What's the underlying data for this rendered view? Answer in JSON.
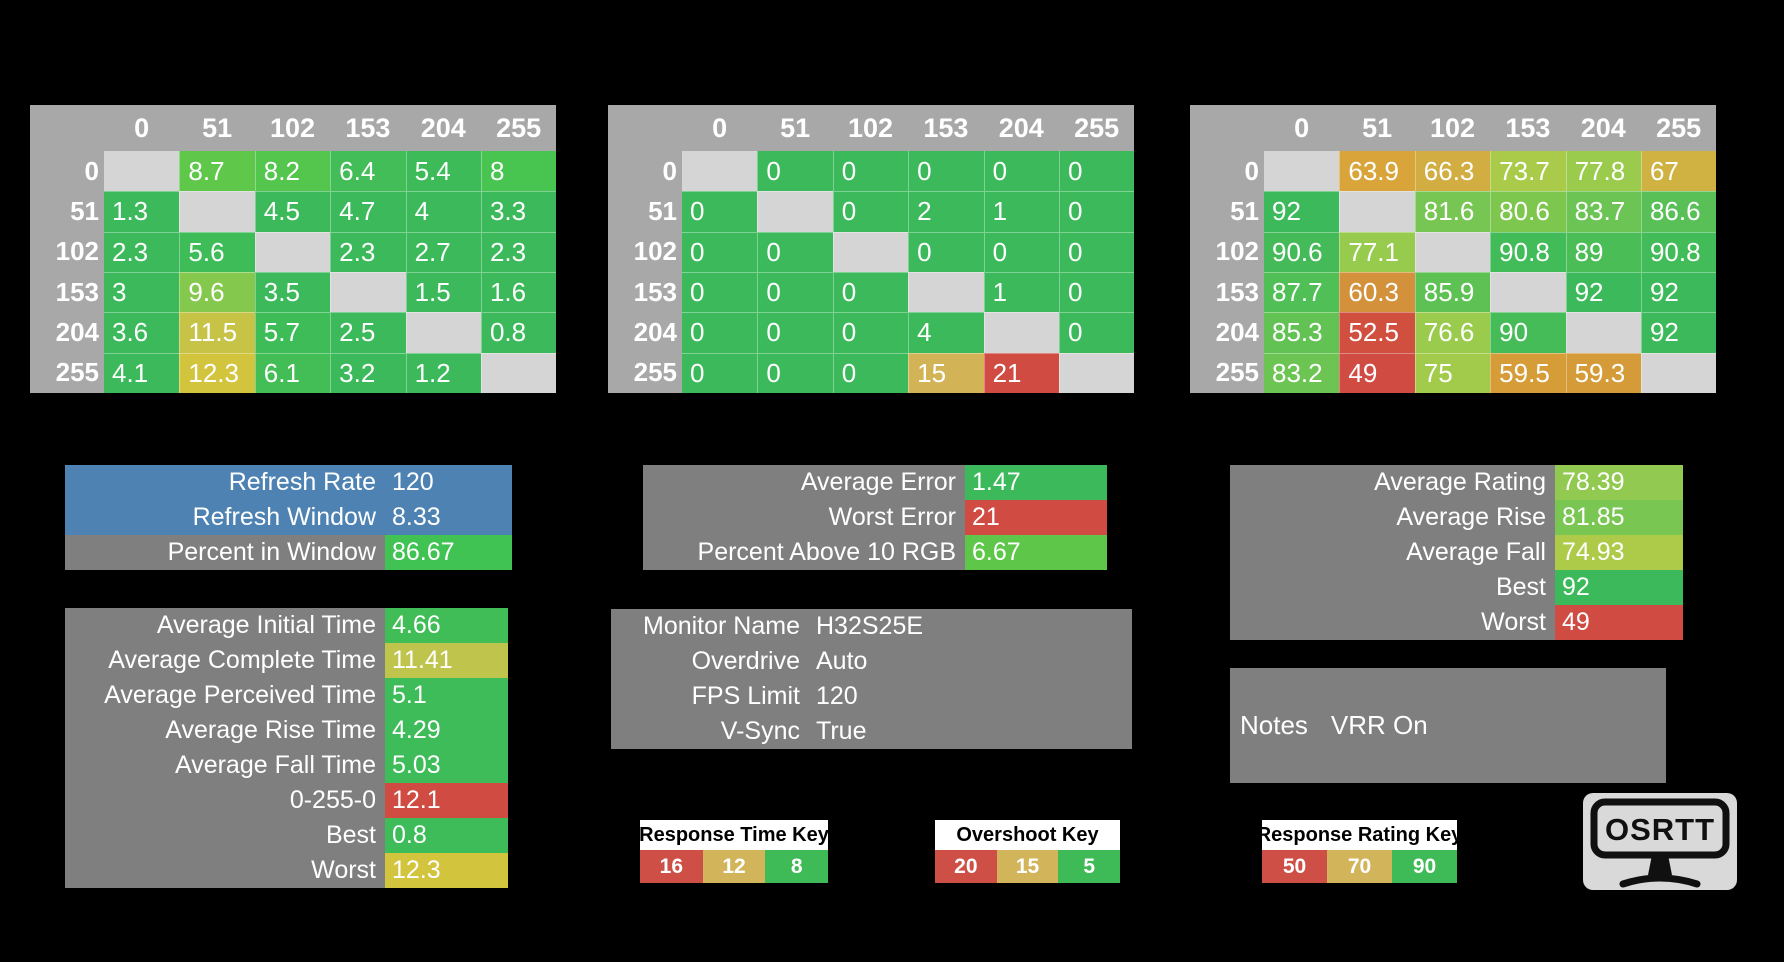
{
  "colors": {
    "background": "#000000",
    "table_header_gray": "#a8a8a8",
    "diagonal_gray": "#d5d5d5",
    "panel_gray": "#7f7f7f",
    "refresh_blue": "#4d82b2",
    "good_green": "#3cba5b",
    "mid_yellow": "#d2b45b",
    "bad_red": "#d04b42"
  },
  "matrices": [
    {
      "name": "response-time-matrix",
      "col_headers": [
        "0",
        "51",
        "102",
        "153",
        "204",
        "255"
      ],
      "rows": [
        {
          "label": "0",
          "cells": [
            null,
            {
              "v": "8.7",
              "c": "#5fc84a"
            },
            {
              "v": "8.2",
              "c": "#54c64d"
            },
            {
              "v": "6.4",
              "c": "#42bd57"
            },
            {
              "v": "5.4",
              "c": "#3dbb59"
            },
            {
              "v": "8",
              "c": "#48c550"
            }
          ]
        },
        {
          "label": "51",
          "cells": [
            {
              "v": "1.3",
              "c": "#3cba5b"
            },
            null,
            {
              "v": "4.5",
              "c": "#3cba5b"
            },
            {
              "v": "4.7",
              "c": "#3cba5b"
            },
            {
              "v": "4",
              "c": "#3cba5b"
            },
            {
              "v": "3.3",
              "c": "#3cba5b"
            }
          ]
        },
        {
          "label": "102",
          "cells": [
            {
              "v": "2.3",
              "c": "#3cba5b"
            },
            {
              "v": "5.6",
              "c": "#3ebc58"
            },
            null,
            {
              "v": "2.3",
              "c": "#3cba5b"
            },
            {
              "v": "2.7",
              "c": "#3cba5b"
            },
            {
              "v": "2.3",
              "c": "#3cba5b"
            }
          ]
        },
        {
          "label": "153",
          "cells": [
            {
              "v": "3",
              "c": "#3cba5b"
            },
            {
              "v": "9.6",
              "c": "#84c94d"
            },
            {
              "v": "3.5",
              "c": "#3cba5b"
            },
            null,
            {
              "v": "1.5",
              "c": "#3cba5b"
            },
            {
              "v": "1.6",
              "c": "#3cba5b"
            }
          ]
        },
        {
          "label": "204",
          "cells": [
            {
              "v": "3.6",
              "c": "#3cba5b"
            },
            {
              "v": "11.5",
              "c": "#c6c347"
            },
            {
              "v": "5.7",
              "c": "#3ebc58"
            },
            {
              "v": "2.5",
              "c": "#3cba5b"
            },
            null,
            {
              "v": "0.8",
              "c": "#3cba5b"
            }
          ]
        },
        {
          "label": "255",
          "cells": [
            {
              "v": "4.1",
              "c": "#3cba5b"
            },
            {
              "v": "12.3",
              "c": "#d3c43d"
            },
            {
              "v": "6.1",
              "c": "#43bd56"
            },
            {
              "v": "3.2",
              "c": "#3cba5b"
            },
            {
              "v": "1.2",
              "c": "#3cba5b"
            },
            null
          ]
        }
      ]
    },
    {
      "name": "overshoot-matrix",
      "col_headers": [
        "0",
        "51",
        "102",
        "153",
        "204",
        "255"
      ],
      "rows": [
        {
          "label": "0",
          "cells": [
            null,
            {
              "v": "0",
              "c": "#3cba5b"
            },
            {
              "v": "0",
              "c": "#3cba5b"
            },
            {
              "v": "0",
              "c": "#3cba5b"
            },
            {
              "v": "0",
              "c": "#3cba5b"
            },
            {
              "v": "0",
              "c": "#3cba5b"
            }
          ]
        },
        {
          "label": "51",
          "cells": [
            {
              "v": "0",
              "c": "#3cba5b"
            },
            null,
            {
              "v": "0",
              "c": "#3cba5b"
            },
            {
              "v": "2",
              "c": "#3cba5b"
            },
            {
              "v": "1",
              "c": "#3cba5b"
            },
            {
              "v": "0",
              "c": "#3cba5b"
            }
          ]
        },
        {
          "label": "102",
          "cells": [
            {
              "v": "0",
              "c": "#3cba5b"
            },
            {
              "v": "0",
              "c": "#3cba5b"
            },
            null,
            {
              "v": "0",
              "c": "#3cba5b"
            },
            {
              "v": "0",
              "c": "#3cba5b"
            },
            {
              "v": "0",
              "c": "#3cba5b"
            }
          ]
        },
        {
          "label": "153",
          "cells": [
            {
              "v": "0",
              "c": "#3cba5b"
            },
            {
              "v": "0",
              "c": "#3cba5b"
            },
            {
              "v": "0",
              "c": "#3cba5b"
            },
            null,
            {
              "v": "1",
              "c": "#3cba5b"
            },
            {
              "v": "0",
              "c": "#3cba5b"
            }
          ]
        },
        {
          "label": "204",
          "cells": [
            {
              "v": "0",
              "c": "#3cba5b"
            },
            {
              "v": "0",
              "c": "#3cba5b"
            },
            {
              "v": "0",
              "c": "#3cba5b"
            },
            {
              "v": "4",
              "c": "#3cba5b"
            },
            null,
            {
              "v": "0",
              "c": "#3cba5b"
            }
          ]
        },
        {
          "label": "255",
          "cells": [
            {
              "v": "0",
              "c": "#3cba5b"
            },
            {
              "v": "0",
              "c": "#3cba5b"
            },
            {
              "v": "0",
              "c": "#3cba5b"
            },
            {
              "v": "15",
              "c": "#d2b456"
            },
            {
              "v": "21",
              "c": "#d04b42"
            },
            null
          ]
        }
      ]
    },
    {
      "name": "response-rating-matrix",
      "col_headers": [
        "0",
        "51",
        "102",
        "153",
        "204",
        "255"
      ],
      "rows": [
        {
          "label": "0",
          "cells": [
            null,
            {
              "v": "63.9",
              "c": "#d9a53a"
            },
            {
              "v": "66.3",
              "c": "#d2ad41"
            },
            {
              "v": "73.7",
              "c": "#aacb49"
            },
            {
              "v": "77.8",
              "c": "#9bcb4d"
            },
            {
              "v": "67",
              "c": "#cfb242"
            }
          ]
        },
        {
          "label": "51",
          "cells": [
            {
              "v": "92",
              "c": "#3cba5b"
            },
            null,
            {
              "v": "81.6",
              "c": "#77c653"
            },
            {
              "v": "80.6",
              "c": "#7ec74f"
            },
            {
              "v": "83.7",
              "c": "#6bc454"
            },
            {
              "v": "86.6",
              "c": "#58c056"
            }
          ]
        },
        {
          "label": "102",
          "cells": [
            {
              "v": "90.6",
              "c": "#44bb58"
            },
            {
              "v": "77.1",
              "c": "#97cb4d"
            },
            null,
            {
              "v": "90.8",
              "c": "#42bb59"
            },
            {
              "v": "89",
              "c": "#4abd57"
            },
            {
              "v": "90.8",
              "c": "#42bb59"
            }
          ]
        },
        {
          "label": "153",
          "cells": [
            {
              "v": "87.7",
              "c": "#50bf56"
            },
            {
              "v": "60.3",
              "c": "#d3913c"
            },
            {
              "v": "85.9",
              "c": "#5dc153"
            },
            null,
            {
              "v": "92",
              "c": "#3cba5b"
            },
            {
              "v": "92",
              "c": "#3cba5b"
            }
          ]
        },
        {
          "label": "204",
          "cells": [
            {
              "v": "85.3",
              "c": "#63c254"
            },
            {
              "v": "52.5",
              "c": "#d14f3e"
            },
            {
              "v": "76.6",
              "c": "#9acb4d"
            },
            {
              "v": "90",
              "c": "#45bc58"
            },
            null,
            {
              "v": "92",
              "c": "#3cba5b"
            }
          ]
        },
        {
          "label": "255",
          "cells": [
            {
              "v": "83.2",
              "c": "#6cc453"
            },
            {
              "v": "49",
              "c": "#d04b42"
            },
            {
              "v": "75",
              "c": "#a3cb4b"
            },
            {
              "v": "59.5",
              "c": "#d59c38"
            },
            {
              "v": "59.3",
              "c": "#d59b38"
            },
            null
          ]
        }
      ]
    }
  ],
  "panels": {
    "refresh": {
      "rows": [
        {
          "label": "Refresh Rate",
          "value": "120",
          "row_bg": "#4d82b2"
        },
        {
          "label": "Refresh Window",
          "value": "8.33",
          "row_bg": "#4d82b2"
        },
        {
          "label": "Percent in Window",
          "value": "86.67",
          "label_bg": "#7f7f7f",
          "value_bg": "#41c353"
        }
      ]
    },
    "error": {
      "rows": [
        {
          "label": "Average Error",
          "value": "1.47",
          "label_bg": "#7f7f7f",
          "value_bg": "#3cba5b"
        },
        {
          "label": "Worst Error",
          "value": "21",
          "label_bg": "#7f7f7f",
          "value_bg": "#d04b42"
        },
        {
          "label": "Percent Above 10 RGB",
          "value": "6.67",
          "label_bg": "#7f7f7f",
          "value_bg": "#5ec74a"
        }
      ]
    },
    "rating": {
      "rows": [
        {
          "label": "Average Rating",
          "value": "78.39",
          "label_bg": "#7f7f7f",
          "value_bg": "#92ca51"
        },
        {
          "label": "Average Rise",
          "value": "81.85",
          "label_bg": "#7f7f7f",
          "value_bg": "#79c653"
        },
        {
          "label": "Average Fall",
          "value": "74.93",
          "label_bg": "#7f7f7f",
          "value_bg": "#aeca49"
        },
        {
          "label": "Best",
          "value": "92",
          "label_bg": "#7f7f7f",
          "value_bg": "#3cba5b"
        },
        {
          "label": "Worst",
          "value": "49",
          "label_bg": "#7f7f7f",
          "value_bg": "#d04b42"
        }
      ]
    },
    "times": {
      "rows": [
        {
          "label": "Average Initial Time",
          "value": "4.66",
          "label_bg": "#7f7f7f",
          "value_bg": "#41bd57"
        },
        {
          "label": "Average Complete Time",
          "value": "11.41",
          "label_bg": "#7f7f7f",
          "value_bg": "#bec44c"
        },
        {
          "label": "Average Perceived Time",
          "value": "5.1",
          "label_bg": "#7f7f7f",
          "value_bg": "#3dbc59"
        },
        {
          "label": "Average Rise Time",
          "value": "4.29",
          "label_bg": "#7f7f7f",
          "value_bg": "#3dbc59"
        },
        {
          "label": "Average Fall Time",
          "value": "5.03",
          "label_bg": "#7f7f7f",
          "value_bg": "#3dbc59"
        },
        {
          "label": "0-255-0",
          "value": "12.1",
          "label_bg": "#7f7f7f",
          "value_bg": "#d04b42"
        },
        {
          "label": "Best",
          "value": "0.8",
          "label_bg": "#7f7f7f",
          "value_bg": "#3dbc59"
        },
        {
          "label": "Worst",
          "value": "12.3",
          "label_bg": "#7f7f7f",
          "value_bg": "#d3c43d"
        }
      ]
    }
  },
  "monitor_info": {
    "rows": [
      {
        "label": "Monitor Name",
        "value": "H32S25E"
      },
      {
        "label": "Overdrive",
        "value": "Auto"
      },
      {
        "label": "FPS Limit",
        "value": "120"
      },
      {
        "label": "V-Sync",
        "value": "True"
      }
    ]
  },
  "notes": {
    "label": "Notes",
    "value": "VRR On"
  },
  "keys": {
    "response_time": {
      "title": "Response Time Key",
      "cells": [
        {
          "v": "16",
          "c": "#cd4f46"
        },
        {
          "v": "12",
          "c": "#d2b45b"
        },
        {
          "v": "8",
          "c": "#3eba56"
        }
      ]
    },
    "overshoot": {
      "title": "Overshoot Key",
      "cells": [
        {
          "v": "20",
          "c": "#cd4f46"
        },
        {
          "v": "15",
          "c": "#d2b45b"
        },
        {
          "v": "5",
          "c": "#3eba56"
        }
      ]
    },
    "response_rating": {
      "title": "Response Rating Key",
      "cells": [
        {
          "v": "50",
          "c": "#cd4f46"
        },
        {
          "v": "70",
          "c": "#d2b45b"
        },
        {
          "v": "90",
          "c": "#3eba56"
        }
      ]
    }
  },
  "logo": {
    "text": "OSRTT"
  }
}
